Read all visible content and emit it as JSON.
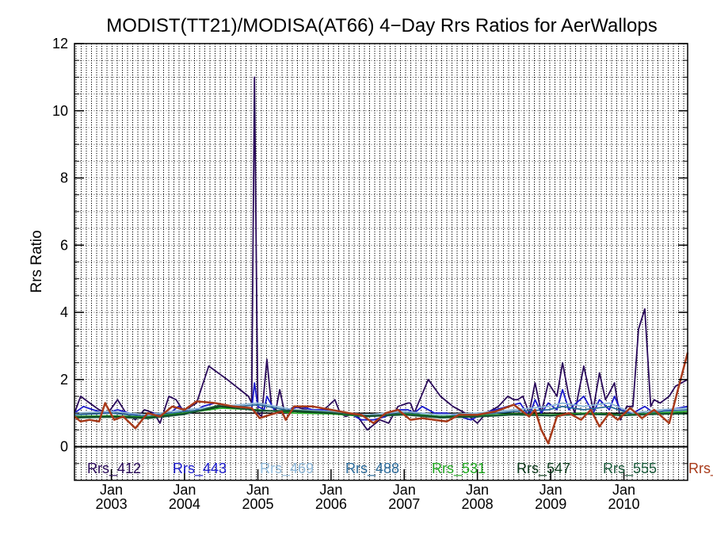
{
  "chart_data": {
    "type": "line",
    "title": "MODIST(TT21)/MODISA(AT66) 4−Day Rrs Ratios for AerWallops",
    "xlabel": "",
    "ylabel": "Rrs Ratio",
    "xlim": [
      "2002-07-01",
      "2010-11-15"
    ],
    "ylim": [
      -1,
      12
    ],
    "yticks": [
      0,
      2,
      4,
      6,
      8,
      10,
      12
    ],
    "xticks": [
      {
        "month": "Jan",
        "year": "2003",
        "date": "2003-01-01"
      },
      {
        "month": "Jan",
        "year": "2004",
        "date": "2004-01-01"
      },
      {
        "month": "Jan",
        "year": "2005",
        "date": "2005-01-01"
      },
      {
        "month": "Jan",
        "year": "2006",
        "date": "2006-01-01"
      },
      {
        "month": "Jan",
        "year": "2007",
        "date": "2007-01-01"
      },
      {
        "month": "Jan",
        "year": "2008",
        "date": "2008-01-01"
      },
      {
        "month": "Jan",
        "year": "2009",
        "date": "2009-01-01"
      },
      {
        "month": "Jan",
        "year": "2010",
        "date": "2010-01-01"
      }
    ],
    "grid": true,
    "reference_lines": [
      1,
      0
    ],
    "legend_placement": "bottom inside plot",
    "series": [
      {
        "name": "Rrs_412",
        "color": "#2a0a5a",
        "x": [
          "2002-07-01",
          "2002-08-01",
          "2002-09-15",
          "2002-11-01",
          "2002-12-15",
          "2003-02-01",
          "2003-03-15",
          "2003-05-01",
          "2003-06-15",
          "2003-08-01",
          "2003-09-01",
          "2003-10-15",
          "2003-11-20",
          "2004-01-01",
          "2004-02-01",
          "2004-03-01",
          "2004-05-01",
          "2004-08-01",
          "2004-11-15",
          "2004-12-01",
          "2004-12-15",
          "2005-01-01",
          "2005-01-20",
          "2005-02-15",
          "2005-03-10",
          "2005-04-01",
          "2005-04-20",
          "2005-05-15",
          "2005-07-01",
          "2005-09-01",
          "2005-11-01",
          "2005-12-15",
          "2006-01-20",
          "2006-02-15",
          "2006-03-15",
          "2006-05-01",
          "2006-07-01",
          "2006-09-01",
          "2006-10-15",
          "2006-12-01",
          "2007-01-20",
          "2007-02-01",
          "2007-02-20",
          "2007-05-01",
          "2007-07-01",
          "2007-09-01",
          "2007-11-01",
          "2008-01-01",
          "2008-02-15",
          "2008-04-15",
          "2008-06-01",
          "2008-07-01",
          "2008-07-20",
          "2008-08-15",
          "2008-09-15",
          "2008-10-15",
          "2008-11-15",
          "2008-12-20",
          "2009-02-01",
          "2009-03-01",
          "2009-04-01",
          "2009-05-01",
          "2009-06-15",
          "2009-08-01",
          "2009-09-01",
          "2009-10-01",
          "2009-10-20",
          "2009-11-15",
          "2009-12-15",
          "2010-01-15",
          "2010-02-15",
          "2010-03-15",
          "2010-04-15",
          "2010-05-15",
          "2010-06-01",
          "2010-07-01",
          "2010-08-15",
          "2010-09-15",
          "2010-11-15"
        ],
        "values": [
          1.0,
          1.5,
          1.3,
          1.1,
          1.0,
          1.4,
          1.0,
          0.8,
          1.1,
          1.0,
          0.7,
          1.5,
          1.4,
          1.0,
          1.2,
          1.3,
          2.4,
          2.0,
          1.5,
          1.3,
          11.0,
          1.0,
          0.9,
          2.6,
          1.2,
          1.1,
          1.7,
          1.0,
          1.2,
          1.1,
          1.0,
          1.2,
          1.4,
          1.0,
          0.9,
          1.0,
          0.5,
          0.8,
          0.7,
          1.2,
          1.3,
          1.3,
          1.0,
          2.0,
          1.5,
          1.2,
          1.0,
          0.7,
          1.0,
          1.2,
          1.5,
          1.4,
          1.4,
          1.5,
          1.0,
          1.9,
          1.0,
          1.9,
          1.5,
          2.5,
          1.5,
          1.0,
          2.4,
          1.1,
          2.2,
          1.4,
          1.6,
          1.9,
          0.8,
          1.2,
          1.2,
          3.5,
          4.1,
          1.2,
          1.4,
          1.3,
          1.5,
          1.8,
          2.0
        ]
      },
      {
        "name": "Rrs_443",
        "color": "#1a1acc",
        "x": [
          "2002-07-01",
          "2002-08-15",
          "2002-10-01",
          "2002-12-01",
          "2003-02-01",
          "2003-04-01",
          "2003-06-01",
          "2003-08-01",
          "2003-10-01",
          "2003-12-01",
          "2004-02-01",
          "2004-04-01",
          "2004-06-01",
          "2004-08-01",
          "2004-10-01",
          "2004-12-01",
          "2004-12-15",
          "2005-01-01",
          "2005-02-01",
          "2005-02-15",
          "2005-04-01",
          "2005-06-01",
          "2005-08-01",
          "2005-10-01",
          "2005-12-01",
          "2006-02-01",
          "2006-04-01",
          "2006-06-01",
          "2006-08-01",
          "2006-10-01",
          "2006-12-01",
          "2007-01-20",
          "2007-02-20",
          "2007-04-01",
          "2007-06-01",
          "2007-08-01",
          "2007-10-01",
          "2007-12-01",
          "2008-02-01",
          "2008-04-01",
          "2008-06-01",
          "2008-08-01",
          "2008-09-15",
          "2008-10-15",
          "2008-11-15",
          "2008-12-20",
          "2009-02-01",
          "2009-03-01",
          "2009-04-01",
          "2009-06-15",
          "2009-08-01",
          "2009-09-01",
          "2009-10-20",
          "2009-11-15",
          "2009-12-15",
          "2010-02-15",
          "2010-04-15",
          "2010-06-01",
          "2010-08-15",
          "2010-11-15"
        ],
        "values": [
          1.0,
          1.2,
          1.1,
          1.0,
          1.1,
          1.0,
          0.9,
          1.0,
          0.9,
          1.2,
          1.0,
          1.2,
          1.3,
          1.2,
          1.2,
          1.1,
          1.9,
          1.2,
          1.1,
          1.5,
          1.0,
          1.1,
          1.2,
          1.1,
          1.1,
          1.0,
          1.0,
          0.8,
          0.8,
          0.9,
          1.1,
          1.1,
          1.0,
          1.2,
          1.0,
          1.0,
          0.9,
          0.8,
          1.0,
          1.1,
          1.2,
          1.3,
          0.9,
          1.4,
          1.0,
          1.3,
          1.1,
          1.7,
          1.1,
          1.5,
          1.0,
          1.4,
          1.1,
          1.5,
          1.1,
          1.0,
          1.2,
          1.0,
          1.1,
          1.2
        ]
      },
      {
        "name": "Rrs_469",
        "color": "#8fb8d8",
        "x": [
          "2002-07-01",
          "2003-01-01",
          "2003-07-01",
          "2004-01-01",
          "2004-07-01",
          "2005-01-01",
          "2005-07-01",
          "2006-01-01",
          "2006-07-01",
          "2007-01-01",
          "2007-07-01",
          "2008-01-01",
          "2008-07-01",
          "2008-12-20",
          "2009-03-01",
          "2009-06-15",
          "2009-10-20",
          "2010-02-15",
          "2010-07-01",
          "2010-11-15"
        ],
        "values": [
          1.0,
          1.05,
          0.95,
          1.1,
          1.2,
          1.3,
          1.1,
          1.05,
          0.95,
          1.05,
          0.95,
          1.0,
          1.1,
          1.2,
          1.3,
          1.2,
          1.3,
          1.0,
          1.1,
          1.15
        ]
      },
      {
        "name": "Rrs_488",
        "color": "#2a6a9a",
        "x": [
          "2002-07-01",
          "2003-01-01",
          "2003-07-01",
          "2004-01-01",
          "2004-07-01",
          "2005-01-01",
          "2005-07-01",
          "2006-01-01",
          "2006-07-01",
          "2007-01-01",
          "2007-07-01",
          "2008-01-01",
          "2008-07-01",
          "2008-12-20",
          "2009-03-01",
          "2009-06-15",
          "2009-10-20",
          "2010-02-15",
          "2010-07-01",
          "2010-11-15"
        ],
        "values": [
          0.95,
          1.0,
          0.9,
          1.05,
          1.15,
          1.25,
          1.05,
          1.0,
          0.9,
          1.0,
          0.9,
          0.95,
          1.05,
          1.1,
          1.2,
          1.1,
          1.2,
          0.95,
          1.05,
          1.1
        ]
      },
      {
        "name": "Rrs_531",
        "color": "#22aa22",
        "x": [
          "2002-07-01",
          "2003-01-01",
          "2003-07-01",
          "2004-01-01",
          "2004-07-01",
          "2005-01-01",
          "2005-07-01",
          "2006-01-01",
          "2006-07-01",
          "2007-01-01",
          "2007-07-01",
          "2008-01-01",
          "2008-07-01",
          "2009-01-01",
          "2009-07-01",
          "2010-01-01",
          "2010-07-01",
          "2010-11-15"
        ],
        "values": [
          0.9,
          0.92,
          0.88,
          1.0,
          1.15,
          1.1,
          1.0,
          0.98,
          0.9,
          0.98,
          0.9,
          0.92,
          0.98,
          0.95,
          1.0,
          0.95,
          1.0,
          1.05
        ]
      },
      {
        "name": "Rrs_547",
        "color": "#0a3a1a",
        "x": [
          "2002-07-01",
          "2003-01-01",
          "2003-07-01",
          "2004-01-01",
          "2004-07-01",
          "2005-01-01",
          "2005-07-01",
          "2006-01-01",
          "2006-07-01",
          "2007-01-01",
          "2007-07-01",
          "2008-01-01",
          "2008-07-01",
          "2009-01-01",
          "2009-07-01",
          "2010-01-01",
          "2010-07-01",
          "2010-11-15"
        ],
        "values": [
          0.88,
          0.9,
          0.86,
          0.98,
          1.2,
          1.08,
          1.05,
          1.0,
          0.92,
          0.96,
          0.88,
          0.9,
          0.96,
          0.93,
          0.98,
          0.94,
          0.98,
          1.0
        ]
      },
      {
        "name": "Rrs_555",
        "color": "#1a5a3a",
        "x": [
          "2002-07-01",
          "2003-01-01",
          "2003-07-01",
          "2004-01-01",
          "2004-07-01",
          "2005-01-01",
          "2005-07-01",
          "2006-01-01",
          "2006-07-01",
          "2007-01-01",
          "2007-07-01",
          "2008-01-01",
          "2008-07-01",
          "2009-01-01",
          "2009-07-01",
          "2010-01-01",
          "2010-07-01",
          "2010-11-15"
        ],
        "values": [
          0.86,
          0.88,
          0.84,
          0.96,
          1.25,
          1.06,
          1.08,
          1.02,
          0.9,
          0.95,
          0.86,
          0.89,
          0.95,
          0.92,
          0.97,
          0.93,
          0.97,
          0.98
        ]
      },
      {
        "name": "Rrs_",
        "color": "#a83a1a",
        "x": [
          "2002-07-01",
          "2002-08-01",
          "2002-09-15",
          "2002-11-01",
          "2002-12-01",
          "2003-01-15",
          "2003-03-01",
          "2003-05-01",
          "2003-07-01",
          "2003-09-01",
          "2003-11-01",
          "2004-01-01",
          "2004-03-01",
          "2004-06-01",
          "2004-09-01",
          "2004-12-01",
          "2005-01-10",
          "2005-03-01",
          "2005-05-01",
          "2005-05-20",
          "2005-07-01",
          "2005-10-01",
          "2006-01-01",
          "2006-04-01",
          "2006-06-01",
          "2006-08-01",
          "2006-10-01",
          "2006-12-01",
          "2007-02-01",
          "2007-04-01",
          "2007-06-01",
          "2007-08-01",
          "2007-10-01",
          "2008-01-01",
          "2008-04-01",
          "2008-07-01",
          "2008-09-15",
          "2008-10-15",
          "2008-11-15",
          "2008-12-20",
          "2009-02-01",
          "2009-04-01",
          "2009-06-01",
          "2009-07-20",
          "2009-09-01",
          "2009-10-20",
          "2009-12-01",
          "2010-02-01",
          "2010-04-01",
          "2010-06-01",
          "2010-08-15",
          "2010-11-15"
        ],
        "values": [
          0.9,
          0.75,
          0.8,
          0.75,
          1.3,
          0.8,
          0.9,
          0.55,
          1.0,
          0.9,
          1.2,
          1.1,
          1.35,
          1.3,
          1.2,
          1.15,
          0.85,
          0.95,
          1.05,
          0.8,
          1.2,
          1.2,
          1.1,
          1.0,
          0.95,
          0.7,
          1.0,
          1.1,
          0.8,
          0.85,
          0.8,
          0.75,
          0.95,
          0.95,
          1.05,
          1.25,
          0.9,
          1.1,
          0.5,
          0.1,
          0.9,
          1.0,
          0.8,
          1.1,
          0.6,
          1.0,
          0.8,
          1.15,
          0.85,
          1.1,
          0.7,
          2.8
        ]
      }
    ]
  }
}
